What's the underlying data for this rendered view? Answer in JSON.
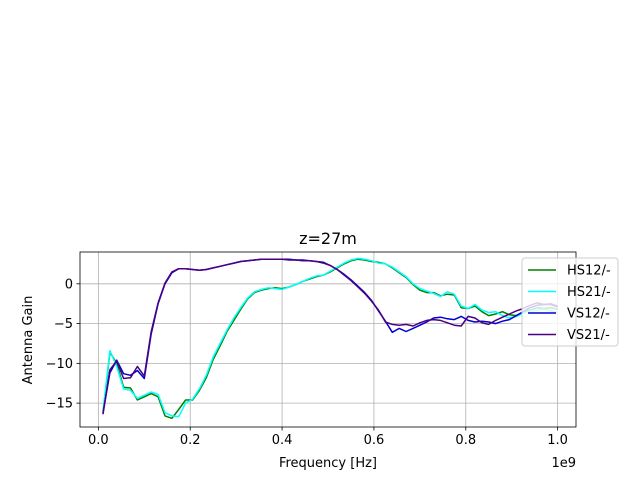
{
  "chart_data": {
    "type": "line",
    "title": "z=27m",
    "xlabel": "Frequency [Hz]",
    "ylabel": "Antenna Gain",
    "x_offset_label": "1e9",
    "xlim": [
      -0.04,
      1.04
    ],
    "ylim": [
      -18,
      4
    ],
    "x_ticks": [
      0.0,
      0.2,
      0.4,
      0.6,
      0.8,
      1.0
    ],
    "x_tick_labels": [
      "0.0",
      "0.2",
      "0.4",
      "0.6",
      "0.8",
      "1.0"
    ],
    "y_ticks": [
      0,
      -5,
      -10,
      -15
    ],
    "y_tick_labels": [
      "0",
      "−5",
      "−10",
      "−15"
    ],
    "grid": true,
    "legend_position": "right",
    "series": [
      {
        "name": "HS12/-",
        "color": "#008000",
        "x": [
          0.01,
          0.025,
          0.04,
          0.055,
          0.07,
          0.085,
          0.1,
          0.115,
          0.13,
          0.145,
          0.16,
          0.175,
          0.19,
          0.205,
          0.22,
          0.235,
          0.25,
          0.265,
          0.28,
          0.295,
          0.31,
          0.325,
          0.34,
          0.355,
          0.37,
          0.385,
          0.4,
          0.415,
          0.43,
          0.445,
          0.46,
          0.475,
          0.49,
          0.505,
          0.52,
          0.535,
          0.55,
          0.565,
          0.58,
          0.595,
          0.61,
          0.625,
          0.64,
          0.655,
          0.67,
          0.685,
          0.7,
          0.715,
          0.73,
          0.745,
          0.76,
          0.775,
          0.79,
          0.805,
          0.82,
          0.835,
          0.85,
          0.865,
          0.88,
          0.895,
          0.91,
          0.925,
          0.94,
          0.955,
          0.97,
          0.985,
          1.0
        ],
        "y": [
          -16.3,
          -8.6,
          -10.0,
          -13.0,
          -13.1,
          -14.6,
          -14.2,
          -13.8,
          -14.2,
          -16.6,
          -16.9,
          -15.8,
          -14.6,
          -14.6,
          -13.4,
          -11.8,
          -9.5,
          -7.8,
          -6.0,
          -4.6,
          -3.2,
          -1.9,
          -1.1,
          -0.8,
          -0.6,
          -0.5,
          -0.6,
          -0.4,
          -0.1,
          0.3,
          0.6,
          0.9,
          1.1,
          1.5,
          2.0,
          2.5,
          2.9,
          3.1,
          3.0,
          2.8,
          2.7,
          2.5,
          2.0,
          1.4,
          0.8,
          -0.1,
          -0.8,
          -1.1,
          -1.1,
          -1.5,
          -1.3,
          -1.4,
          -3.0,
          -3.1,
          -2.8,
          -3.5,
          -4.0,
          -3.8,
          -3.5,
          -3.9,
          -4.0,
          -3.6,
          -3.3,
          -3.0,
          -3.1,
          -3.0,
          -3.2
        ]
      },
      {
        "name": "HS21/-",
        "color": "#00ffff",
        "x": [
          0.01,
          0.025,
          0.04,
          0.055,
          0.07,
          0.085,
          0.1,
          0.115,
          0.13,
          0.145,
          0.16,
          0.175,
          0.19,
          0.205,
          0.22,
          0.235,
          0.25,
          0.265,
          0.28,
          0.295,
          0.31,
          0.325,
          0.34,
          0.355,
          0.37,
          0.385,
          0.4,
          0.415,
          0.43,
          0.445,
          0.46,
          0.475,
          0.49,
          0.505,
          0.52,
          0.535,
          0.55,
          0.565,
          0.58,
          0.595,
          0.61,
          0.625,
          0.64,
          0.655,
          0.67,
          0.685,
          0.7,
          0.715,
          0.73,
          0.745,
          0.76,
          0.775,
          0.79,
          0.805,
          0.82,
          0.835,
          0.85,
          0.865,
          0.88,
          0.895,
          0.91,
          0.925,
          0.94,
          0.955,
          0.97,
          0.985,
          1.0
        ],
        "y": [
          -16.0,
          -8.4,
          -10.4,
          -13.2,
          -13.4,
          -14.4,
          -14.0,
          -13.6,
          -13.9,
          -16.2,
          -16.6,
          -16.7,
          -15.0,
          -14.5,
          -13.2,
          -11.5,
          -9.2,
          -7.5,
          -5.8,
          -4.3,
          -3.0,
          -1.8,
          -1.0,
          -0.7,
          -0.5,
          -0.6,
          -0.7,
          -0.4,
          -0.1,
          0.3,
          0.7,
          1.0,
          1.1,
          1.6,
          2.1,
          2.6,
          3.0,
          3.2,
          3.1,
          2.9,
          2.6,
          2.5,
          2.1,
          1.5,
          0.9,
          0.0,
          -0.6,
          -0.9,
          -1.2,
          -1.6,
          -1.0,
          -1.3,
          -2.8,
          -3.1,
          -2.6,
          -3.3,
          -3.6,
          -3.5,
          -4.0,
          -4.3,
          -4.1,
          -3.7,
          -3.4,
          -3.3,
          -3.2,
          -3.4,
          -3.6
        ]
      },
      {
        "name": "VS12/-",
        "color": "#0000cd",
        "x": [
          0.01,
          0.025,
          0.04,
          0.055,
          0.07,
          0.085,
          0.1,
          0.115,
          0.13,
          0.145,
          0.16,
          0.175,
          0.19,
          0.205,
          0.22,
          0.235,
          0.25,
          0.265,
          0.28,
          0.295,
          0.31,
          0.325,
          0.34,
          0.355,
          0.37,
          0.385,
          0.4,
          0.415,
          0.43,
          0.445,
          0.46,
          0.475,
          0.49,
          0.505,
          0.52,
          0.535,
          0.55,
          0.565,
          0.58,
          0.595,
          0.61,
          0.625,
          0.64,
          0.655,
          0.67,
          0.685,
          0.7,
          0.715,
          0.73,
          0.745,
          0.76,
          0.775,
          0.79,
          0.805,
          0.82,
          0.835,
          0.85,
          0.865,
          0.88,
          0.895,
          0.91,
          0.925,
          0.94,
          0.955,
          0.97,
          0.985,
          1.0
        ],
        "y": [
          -16.2,
          -11.2,
          -9.6,
          -11.3,
          -11.5,
          -10.9,
          -11.9,
          -6.3,
          -2.5,
          0.0,
          1.4,
          1.9,
          1.9,
          1.8,
          1.7,
          1.8,
          2.0,
          2.2,
          2.4,
          2.6,
          2.8,
          2.9,
          3.0,
          3.1,
          3.1,
          3.1,
          3.1,
          3.1,
          3.0,
          3.0,
          2.9,
          2.8,
          2.7,
          2.3,
          1.8,
          1.2,
          0.5,
          -0.3,
          -1.1,
          -2.1,
          -3.4,
          -4.7,
          -6.1,
          -5.6,
          -6.0,
          -5.6,
          -5.2,
          -4.8,
          -4.3,
          -4.2,
          -4.4,
          -4.5,
          -4.1,
          -4.6,
          -4.8,
          -4.7,
          -4.8,
          -5.0,
          -4.7,
          -4.5,
          -4.0,
          -3.5,
          -3.0,
          -2.7,
          -2.6,
          -2.6,
          -2.9
        ]
      },
      {
        "name": "VS21/-",
        "color": "#4b0082",
        "x": [
          0.01,
          0.025,
          0.04,
          0.055,
          0.07,
          0.085,
          0.1,
          0.115,
          0.13,
          0.145,
          0.16,
          0.175,
          0.19,
          0.205,
          0.22,
          0.235,
          0.25,
          0.265,
          0.28,
          0.295,
          0.31,
          0.325,
          0.34,
          0.355,
          0.37,
          0.385,
          0.4,
          0.415,
          0.43,
          0.445,
          0.46,
          0.475,
          0.49,
          0.505,
          0.52,
          0.535,
          0.55,
          0.565,
          0.58,
          0.595,
          0.61,
          0.625,
          0.64,
          0.655,
          0.67,
          0.685,
          0.7,
          0.715,
          0.73,
          0.745,
          0.76,
          0.775,
          0.79,
          0.805,
          0.82,
          0.835,
          0.85,
          0.865,
          0.88,
          0.895,
          0.91,
          0.925,
          0.94,
          0.955,
          0.97,
          0.985,
          1.0
        ],
        "y": [
          -16.4,
          -10.8,
          -9.7,
          -11.9,
          -11.8,
          -10.4,
          -11.6,
          -6.0,
          -2.4,
          0.1,
          1.5,
          1.9,
          1.9,
          1.8,
          1.7,
          1.8,
          2.0,
          2.2,
          2.4,
          2.6,
          2.8,
          2.9,
          3.0,
          3.1,
          3.1,
          3.1,
          3.1,
          3.0,
          3.0,
          2.9,
          2.9,
          2.8,
          2.6,
          2.3,
          1.8,
          1.1,
          0.4,
          -0.4,
          -1.2,
          -2.2,
          -3.3,
          -4.8,
          -5.1,
          -5.2,
          -5.1,
          -5.3,
          -4.9,
          -4.6,
          -4.5,
          -4.6,
          -4.9,
          -5.2,
          -5.3,
          -4.1,
          -4.3,
          -4.9,
          -5.1,
          -4.6,
          -4.2,
          -3.8,
          -3.4,
          -3.1,
          -2.7,
          -2.4,
          -2.6,
          -2.5,
          -2.8
        ]
      }
    ]
  }
}
